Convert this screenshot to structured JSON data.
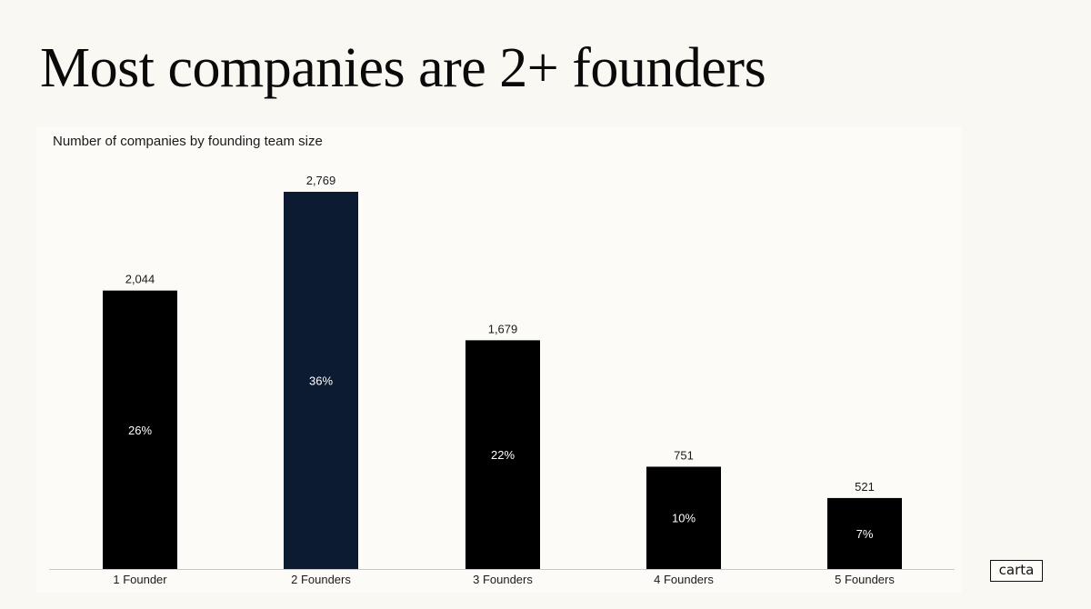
{
  "title": "Most companies are 2+ founders",
  "brand": {
    "logo_text": "carta"
  },
  "colors": {
    "background": "#faf8f3",
    "bar_default": "#000000",
    "bar_highlight": "#0c1b31"
  },
  "chart_data": {
    "type": "bar",
    "subtitle": "Number of companies by founding team size",
    "categories": [
      "1 Founder",
      "2 Founders",
      "3 Founders",
      "4 Founders",
      "5 Founders"
    ],
    "values": [
      2044,
      2769,
      1679,
      751,
      521
    ],
    "value_labels": [
      "2,044",
      "2,769",
      "1,679",
      "751",
      "521"
    ],
    "percent_labels": [
      "26%",
      "36%",
      "22%",
      "10%",
      "7%"
    ],
    "highlight_index": 1,
    "ylim": [
      0,
      2769
    ],
    "grid": false,
    "legend": "none"
  }
}
